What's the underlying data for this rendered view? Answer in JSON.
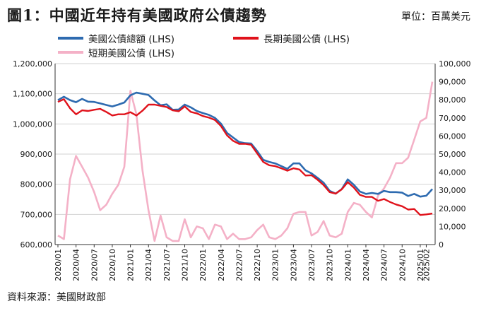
{
  "header": {
    "title": "圖1：中國近年持有美國政府公債趨勢",
    "unit": "單位：百萬美元"
  },
  "footer": {
    "source": "資料來源：美國財政部"
  },
  "chart_data": {
    "type": "line",
    "x": [
      "2020/01",
      "2020/02",
      "2020/03",
      "2020/04",
      "2020/05",
      "2020/06",
      "2020/07",
      "2020/08",
      "2020/09",
      "2020/10",
      "2020/11",
      "2020/12",
      "2021/01",
      "2021/02",
      "2021/03",
      "2021/04",
      "2021/05",
      "2021/06",
      "2021/07",
      "2021/08",
      "2021/09",
      "2021/10",
      "2021/11",
      "2021/12",
      "2022/01",
      "2022/02",
      "2022/03",
      "2022/04",
      "2022/05",
      "2022/06",
      "2022/07",
      "2022/08",
      "2022/09",
      "2022/10",
      "2022/11",
      "2022/12",
      "2023/01",
      "2023/02",
      "2023/03",
      "2023/04",
      "2023/05",
      "2023/06",
      "2023/07",
      "2023/08",
      "2023/09",
      "2023/10",
      "2023/11",
      "2023/12",
      "2024/01",
      "2024/02",
      "2024/03",
      "2024/04",
      "2024/05",
      "2024/06",
      "2024/07",
      "2024/08",
      "2024/09",
      "2024/10",
      "2024/11",
      "2024/12",
      "2025/01",
      "2025/02",
      "2025/03"
    ],
    "tick_labels": [
      "2020/01",
      "2020/04",
      "2020/07",
      "2020/10",
      "2021/01",
      "2021/04",
      "2021/07",
      "2021/10",
      "2022/01",
      "2022/04",
      "2022/07",
      "2022/10",
      "2023/01",
      "2023/04",
      "2023/07",
      "2023/10",
      "2024/01",
      "2024/04",
      "2024/07",
      "2024/10",
      "2025/01",
      "2025/02"
    ],
    "series": [
      {
        "name": "美國公債總額 (LHS)",
        "axis": "left",
        "color": "#2e6bb0",
        "values": [
          1079000,
          1090000,
          1079000,
          1072000,
          1083000,
          1074000,
          1073000,
          1068000,
          1063000,
          1058000,
          1064000,
          1071000,
          1095000,
          1104000,
          1100000,
          1096000,
          1078000,
          1062000,
          1065000,
          1047000,
          1048000,
          1064000,
          1055000,
          1043000,
          1036000,
          1030000,
          1020000,
          1001000,
          970000,
          955000,
          940000,
          936000,
          935000,
          910000,
          881000,
          874000,
          869000,
          860000,
          851000,
          869000,
          869000,
          846000,
          836000,
          821000,
          805000,
          778000,
          769000,
          784000,
          816000,
          798000,
          776000,
          768000,
          771000,
          768000,
          778000,
          774000,
          774000,
          772000,
          761000,
          768000,
          759000,
          762000,
          784000
        ]
      },
      {
        "name": "長期美國公債 (LHS)",
        "axis": "left",
        "color": "#e0121b",
        "values": [
          1073000,
          1082000,
          1052000,
          1032000,
          1045000,
          1043000,
          1047000,
          1050000,
          1040000,
          1028000,
          1032000,
          1032000,
          1039000,
          1028000,
          1044000,
          1064000,
          1064000,
          1060000,
          1056000,
          1045000,
          1042000,
          1058000,
          1040000,
          1035000,
          1026000,
          1021000,
          1013000,
          993000,
          962000,
          944000,
          934000,
          934000,
          931000,
          902000,
          874000,
          863000,
          860000,
          853000,
          845000,
          853000,
          849000,
          829000,
          830000,
          815000,
          797000,
          774000,
          769000,
          783000,
          807000,
          789000,
          765000,
          758000,
          758000,
          745000,
          751000,
          741000,
          733000,
          727000,
          716000,
          718000,
          698000,
          700000,
          703000
        ]
      },
      {
        "name": "短期美國公債 (LHS)",
        "axis": "right",
        "color": "#f4b1c7",
        "values": [
          5000,
          3000,
          36000,
          49000,
          43000,
          37000,
          29000,
          19000,
          22000,
          28000,
          33000,
          43000,
          85000,
          72000,
          41000,
          19000,
          2000,
          16000,
          4000,
          2000,
          2000,
          14000,
          4000,
          10000,
          9000,
          3000,
          11000,
          10000,
          3000,
          6000,
          3000,
          3000,
          4000,
          8000,
          11000,
          4000,
          3000,
          5000,
          9000,
          17000,
          18000,
          18000,
          5000,
          7000,
          13000,
          5000,
          4000,
          6000,
          18000,
          23000,
          22000,
          18000,
          15000,
          27000,
          31000,
          37000,
          45000,
          45000,
          48000,
          58000,
          68000,
          70000,
          90000
        ]
      }
    ],
    "left_axis": {
      "min": 600000,
      "max": 1200000,
      "ticks": [
        "600,000",
        "700,000",
        "800,000",
        "900,000",
        "1,000,000",
        "1,100,000",
        "1,200,000"
      ]
    },
    "right_axis": {
      "min": 0,
      "max": 100000,
      "ticks": [
        "0",
        "10,000",
        "20,000",
        "30,000",
        "40,000",
        "50,000",
        "60,000",
        "70,000",
        "80,000",
        "90,000",
        "100,000"
      ]
    },
    "grid": true,
    "legend_position": "top-left"
  }
}
